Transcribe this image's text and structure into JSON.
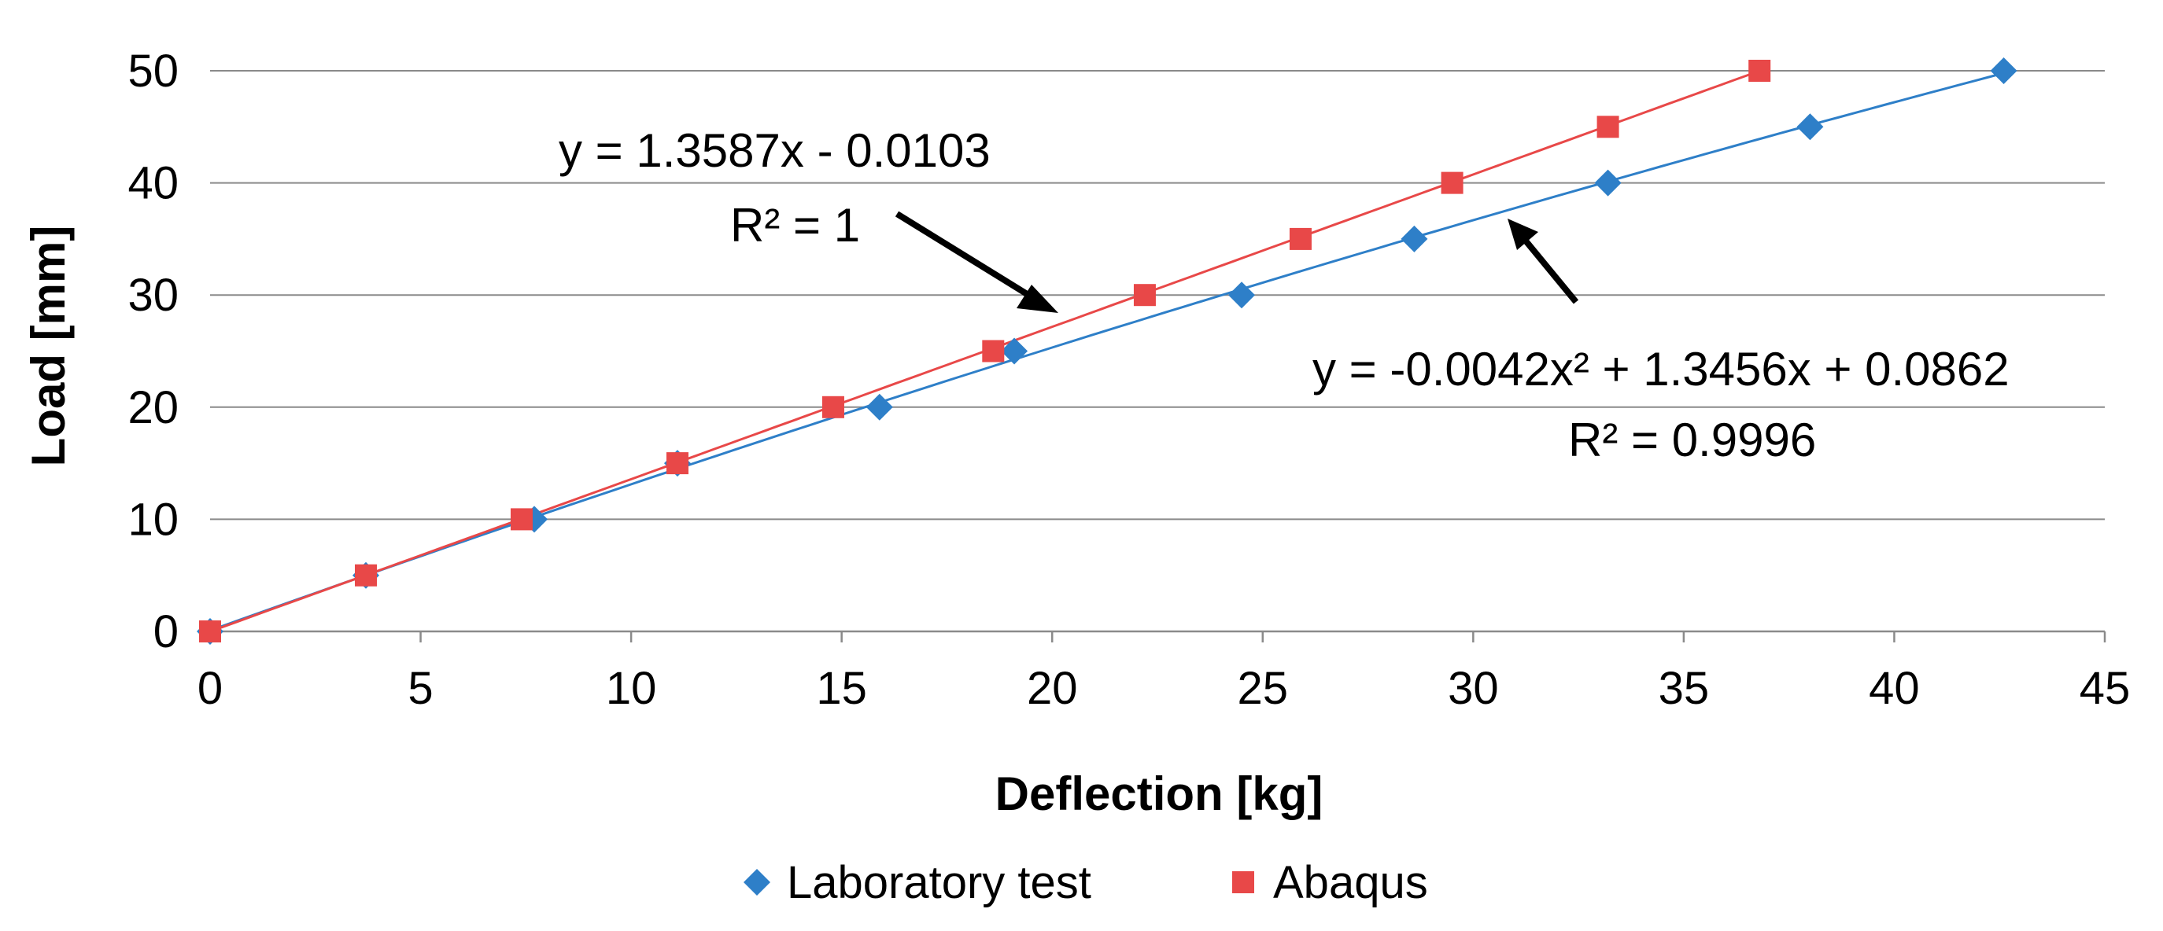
{
  "chart_data": {
    "type": "scatter",
    "title": "",
    "xlabel": "Deflection [kg]",
    "ylabel": "Load [mm]",
    "xlim": [
      0,
      45
    ],
    "ylim": [
      0,
      50
    ],
    "xticks": [
      0,
      5,
      10,
      15,
      20,
      25,
      30,
      35,
      40,
      45
    ],
    "yticks": [
      0,
      10,
      20,
      30,
      40,
      50
    ],
    "grid": "horizontal",
    "legend_position": "bottom",
    "series": [
      {
        "name": "Laboratory test",
        "marker": "diamond",
        "color": "#2E7FC8",
        "x": [
          0,
          3.7,
          7.7,
          11.1,
          15.9,
          19.1,
          24.5,
          28.6,
          33.2,
          38.0,
          42.6
        ],
        "y": [
          0,
          5,
          10,
          15,
          20,
          25,
          30,
          35,
          40,
          45,
          50
        ],
        "trendline": {
          "type": "polynomial",
          "coefficients": [
            -0.0042,
            1.3456,
            0.0862
          ],
          "equation": "y = -0.0042x² + 1.3456x + 0.0862",
          "r2": "R² = 0.9996"
        }
      },
      {
        "name": "Abaqus",
        "marker": "square",
        "color": "#E84848",
        "x": [
          0,
          3.7,
          7.4,
          11.1,
          14.8,
          18.6,
          22.2,
          25.9,
          29.5,
          33.2,
          36.8
        ],
        "y": [
          0,
          5,
          10,
          15,
          20,
          25,
          30,
          35,
          40,
          45,
          50
        ],
        "trendline": {
          "type": "linear",
          "coefficients": [
            1.3587,
            -0.0103
          ],
          "equation": "y = 1.3587x - 0.0103",
          "r2": "R² = 1"
        }
      }
    ]
  }
}
